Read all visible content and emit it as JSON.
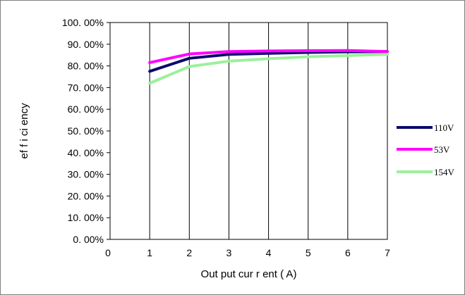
{
  "chart_data": {
    "type": "line",
    "xlabel": "Out put  cur r ent ( A)",
    "ylabel": "ef f i ci ency",
    "xlim": [
      0,
      7
    ],
    "ylim": [
      0,
      1
    ],
    "x_ticks": [
      "0",
      "1",
      "2",
      "3",
      "4",
      "5",
      "6",
      "7"
    ],
    "y_ticks": [
      "0. 00%",
      "10. 00%",
      "20. 00%",
      "30. 00%",
      "40. 00%",
      "50. 00%",
      "60. 00%",
      "70. 00%",
      "80. 00%",
      "90. 00%",
      "100. 00%"
    ],
    "grid": "vertical",
    "legend": "right",
    "x": [
      1,
      2,
      3,
      4,
      5,
      6,
      7
    ],
    "series": [
      {
        "name": "110V",
        "color": "#0a0a6e",
        "values": [
          0.775,
          0.835,
          0.853,
          0.858,
          0.862,
          0.865,
          0.866
        ]
      },
      {
        "name": "53V",
        "color": "#ff00ff",
        "values": [
          0.815,
          0.855,
          0.866,
          0.869,
          0.87,
          0.871,
          0.866
        ]
      },
      {
        "name": "154V",
        "color": "#9cf09c",
        "values": [
          0.72,
          0.797,
          0.822,
          0.833,
          0.842,
          0.848,
          0.853
        ]
      }
    ]
  }
}
